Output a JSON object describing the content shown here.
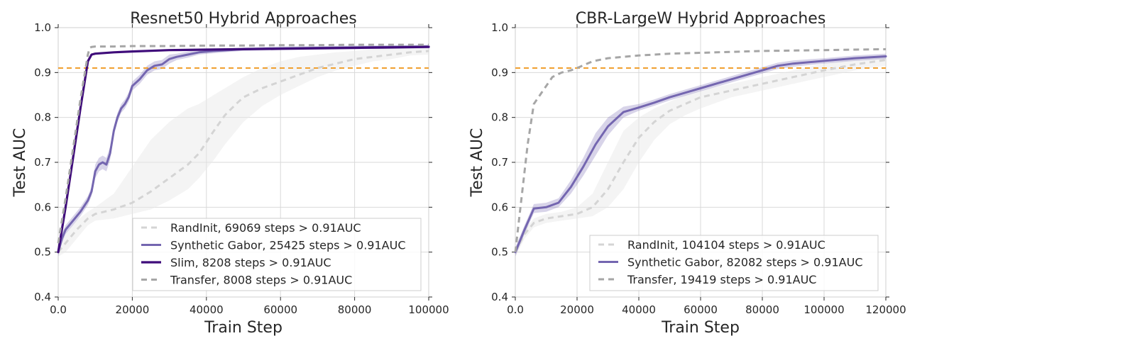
{
  "chart_data": [
    {
      "type": "line",
      "title": "Resnet50 Hybrid Approaches",
      "xlabel": "Train Step",
      "ylabel": "Test AUC",
      "xlim": [
        0,
        100000
      ],
      "ylim": [
        0.4,
        1.0
      ],
      "xticks": [
        0,
        20000,
        40000,
        60000,
        80000,
        100000
      ],
      "yticks": [
        0.4,
        0.5,
        0.6,
        0.7,
        0.8,
        0.9,
        1.0
      ],
      "grid": true,
      "legend_position": "lower-right",
      "threshold": {
        "y": 0.91,
        "color": "#f0a030"
      },
      "series": [
        {
          "name": "RandInit, 69069 steps > 0.91AUC",
          "color": "#d4d4d4",
          "dash": true,
          "width": 3,
          "x": [
            0,
            2000,
            5000,
            8000,
            10000,
            15000,
            20000,
            25000,
            30000,
            35000,
            38000,
            40000,
            42000,
            45000,
            48000,
            50000,
            55000,
            60000,
            65000,
            70000,
            75000,
            80000,
            85000,
            90000,
            95000,
            100000
          ],
          "y": [
            0.5,
            0.52,
            0.55,
            0.575,
            0.585,
            0.595,
            0.61,
            0.635,
            0.665,
            0.695,
            0.72,
            0.745,
            0.77,
            0.805,
            0.83,
            0.845,
            0.865,
            0.88,
            0.895,
            0.91,
            0.92,
            0.93,
            0.935,
            0.94,
            0.945,
            0.948
          ],
          "band_low": [
            0.49,
            0.5,
            0.53,
            0.56,
            0.57,
            0.575,
            0.585,
            0.595,
            0.615,
            0.64,
            0.665,
            0.685,
            0.705,
            0.74,
            0.77,
            0.79,
            0.825,
            0.85,
            0.87,
            0.89,
            0.905,
            0.915,
            0.925,
            0.93,
            0.938,
            0.94
          ],
          "band_high": [
            0.51,
            0.54,
            0.57,
            0.59,
            0.6,
            0.63,
            0.69,
            0.75,
            0.79,
            0.82,
            0.83,
            0.84,
            0.85,
            0.865,
            0.88,
            0.89,
            0.91,
            0.925,
            0.935,
            0.94,
            0.945,
            0.948,
            0.952,
            0.955,
            0.957,
            0.958
          ]
        },
        {
          "name": "Synthetic Gabor, 25425 steps > 0.91AUC",
          "color": "#7466b0",
          "dash": false,
          "width": 3,
          "x": [
            0,
            1000,
            2000,
            4000,
            6000,
            8000,
            9000,
            10000,
            11000,
            12000,
            13000,
            14000,
            15000,
            16000,
            17000,
            18000,
            19000,
            20000,
            22000,
            24000,
            26000,
            28000,
            30000,
            32000,
            35000,
            38000,
            42000,
            46000,
            50000,
            60000,
            70000,
            80000,
            90000,
            100000
          ],
          "y": [
            0.5,
            0.53,
            0.55,
            0.57,
            0.59,
            0.615,
            0.635,
            0.68,
            0.695,
            0.7,
            0.695,
            0.72,
            0.77,
            0.8,
            0.82,
            0.83,
            0.845,
            0.87,
            0.885,
            0.905,
            0.915,
            0.918,
            0.93,
            0.935,
            0.94,
            0.945,
            0.948,
            0.95,
            0.952,
            0.954,
            0.955,
            0.956,
            0.957,
            0.958
          ],
          "band_low": [
            0.49,
            0.52,
            0.54,
            0.56,
            0.58,
            0.605,
            0.625,
            0.665,
            0.68,
            0.685,
            0.68,
            0.705,
            0.76,
            0.79,
            0.81,
            0.82,
            0.835,
            0.86,
            0.875,
            0.895,
            0.905,
            0.908,
            0.92,
            0.928,
            0.933,
            0.94,
            0.943,
            0.946,
            0.948,
            0.95,
            0.951,
            0.952,
            0.953,
            0.954
          ],
          "band_high": [
            0.51,
            0.54,
            0.56,
            0.58,
            0.6,
            0.625,
            0.645,
            0.695,
            0.71,
            0.715,
            0.71,
            0.735,
            0.78,
            0.81,
            0.83,
            0.84,
            0.855,
            0.88,
            0.895,
            0.915,
            0.925,
            0.928,
            0.94,
            0.942,
            0.947,
            0.95,
            0.953,
            0.954,
            0.956,
            0.958,
            0.959,
            0.96,
            0.961,
            0.962
          ]
        },
        {
          "name": "Slim, 8208 steps > 0.91AUC",
          "color": "#3f0c7a",
          "dash": false,
          "width": 3.2,
          "x": [
            0,
            2000,
            4000,
            6000,
            8000,
            9000,
            10000,
            15000,
            20000,
            30000,
            40000,
            50000,
            60000,
            70000,
            80000,
            90000,
            100000
          ],
          "y": [
            0.5,
            0.6,
            0.71,
            0.82,
            0.925,
            0.94,
            0.942,
            0.945,
            0.947,
            0.95,
            0.951,
            0.952,
            0.953,
            0.954,
            0.955,
            0.956,
            0.957
          ],
          "band_low": [],
          "band_high": []
        },
        {
          "name": "Transfer, 8008 steps > 0.91AUC",
          "color": "#a6a6a6",
          "dash": true,
          "width": 3,
          "x": [
            0,
            2000,
            4000,
            6000,
            8000,
            8500,
            9000,
            10000,
            15000,
            20000,
            30000,
            40000,
            50000,
            60000,
            70000,
            80000,
            90000,
            100000
          ],
          "y": [
            0.52,
            0.62,
            0.73,
            0.84,
            0.94,
            0.955,
            0.957,
            0.958,
            0.958,
            0.959,
            0.959,
            0.96,
            0.96,
            0.961,
            0.961,
            0.962,
            0.962,
            0.962
          ],
          "band_low": [],
          "band_high": []
        }
      ]
    },
    {
      "type": "line",
      "title": "CBR-LargeW Hybrid Approaches",
      "xlabel": "Train Step",
      "ylabel": "Test AUC",
      "xlim": [
        0,
        120000
      ],
      "ylim": [
        0.4,
        1.0
      ],
      "xticks": [
        0,
        20000,
        40000,
        60000,
        80000,
        100000,
        120000
      ],
      "yticks": [
        0.4,
        0.5,
        0.6,
        0.7,
        0.8,
        0.9,
        1.0
      ],
      "grid": true,
      "legend_position": "lower-right",
      "threshold": {
        "y": 0.91,
        "color": "#f0a030"
      },
      "series": [
        {
          "name": "RandInit, 104104 steps > 0.91AUC",
          "color": "#d4d4d4",
          "dash": true,
          "width": 3,
          "x": [
            0,
            3000,
            6000,
            10000,
            15000,
            20000,
            25000,
            30000,
            35000,
            40000,
            45000,
            50000,
            55000,
            60000,
            70000,
            80000,
            90000,
            100000,
            110000,
            120000
          ],
          "y": [
            0.5,
            0.54,
            0.565,
            0.575,
            0.58,
            0.585,
            0.6,
            0.64,
            0.7,
            0.755,
            0.79,
            0.815,
            0.83,
            0.845,
            0.86,
            0.875,
            0.89,
            0.905,
            0.918,
            0.928
          ],
          "band_low": [
            0.49,
            0.53,
            0.555,
            0.565,
            0.57,
            0.575,
            0.58,
            0.6,
            0.64,
            0.7,
            0.75,
            0.785,
            0.805,
            0.82,
            0.845,
            0.86,
            0.875,
            0.89,
            0.905,
            0.915
          ],
          "band_high": [
            0.51,
            0.55,
            0.575,
            0.585,
            0.59,
            0.6,
            0.63,
            0.7,
            0.77,
            0.8,
            0.82,
            0.835,
            0.85,
            0.86,
            0.875,
            0.89,
            0.905,
            0.92,
            0.93,
            0.94
          ]
        },
        {
          "name": "Synthetic Gabor, 82082 steps > 0.91AUC",
          "color": "#7466b0",
          "dash": false,
          "width": 3,
          "x": [
            0,
            3000,
            6000,
            10000,
            14000,
            18000,
            22000,
            26000,
            30000,
            35000,
            40000,
            45000,
            50000,
            60000,
            70000,
            80000,
            85000,
            90000,
            100000,
            110000,
            120000
          ],
          "y": [
            0.5,
            0.55,
            0.597,
            0.6,
            0.61,
            0.645,
            0.69,
            0.74,
            0.78,
            0.812,
            0.822,
            0.833,
            0.845,
            0.865,
            0.885,
            0.905,
            0.915,
            0.92,
            0.926,
            0.932,
            0.936
          ],
          "band_low": [
            0.49,
            0.54,
            0.587,
            0.59,
            0.6,
            0.63,
            0.67,
            0.715,
            0.76,
            0.8,
            0.815,
            0.826,
            0.838,
            0.858,
            0.878,
            0.898,
            0.908,
            0.913,
            0.92,
            0.926,
            0.93
          ],
          "band_high": [
            0.51,
            0.56,
            0.607,
            0.61,
            0.62,
            0.66,
            0.71,
            0.765,
            0.8,
            0.824,
            0.83,
            0.84,
            0.852,
            0.872,
            0.892,
            0.912,
            0.922,
            0.927,
            0.932,
            0.938,
            0.942
          ]
        },
        {
          "name": "Transfer, 19419 steps > 0.91AUC",
          "color": "#a6a6a6",
          "dash": true,
          "width": 3,
          "x": [
            0,
            2000,
            4000,
            6000,
            8000,
            10000,
            12000,
            15000,
            18000,
            20000,
            25000,
            30000,
            40000,
            50000,
            60000,
            70000,
            80000,
            90000,
            100000,
            110000,
            120000
          ],
          "y": [
            0.5,
            0.62,
            0.74,
            0.83,
            0.85,
            0.87,
            0.89,
            0.9,
            0.905,
            0.91,
            0.925,
            0.932,
            0.938,
            0.942,
            0.944,
            0.946,
            0.948,
            0.949,
            0.95,
            0.951,
            0.952
          ],
          "band_low": [],
          "band_high": []
        }
      ]
    }
  ]
}
